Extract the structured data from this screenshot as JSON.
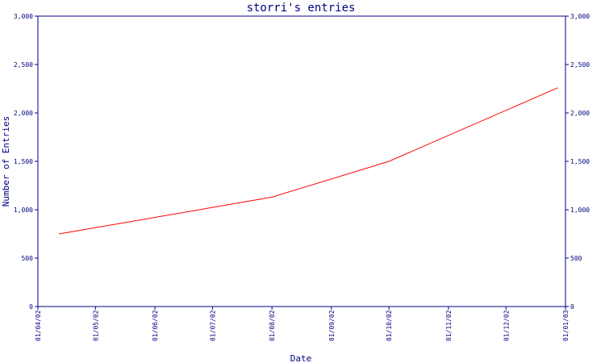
{
  "colors": {
    "axis": "#000080",
    "text": "#000080",
    "line": "#ff0000",
    "background": "#ffffff"
  },
  "chart_data": {
    "type": "line",
    "title": "storri's entries",
    "xlabel": "Date",
    "ylabel": "Number of Entries",
    "ylim": [
      0,
      3000
    ],
    "y_ticks": [
      0,
      500,
      1000,
      1500,
      2000,
      2500,
      3000
    ],
    "y_tick_labels": [
      "0",
      "500",
      "1,000",
      "1,500",
      "2,000",
      "2,500",
      "3,000"
    ],
    "x_tick_labels": [
      "01/04/02",
      "01/05/02",
      "01/06/02",
      "01/07/02",
      "01/08/02",
      "01/09/02",
      "01/10/02",
      "01/11/02",
      "01/12/02",
      "01/01/03"
    ],
    "grid": false,
    "legend": "none",
    "series": [
      {
        "x": [
          "2002-04-12",
          "2002-08-01",
          "2002-10-01",
          "2002-12-28"
        ],
        "y": [
          750,
          1130,
          1500,
          2260
        ]
      }
    ]
  }
}
